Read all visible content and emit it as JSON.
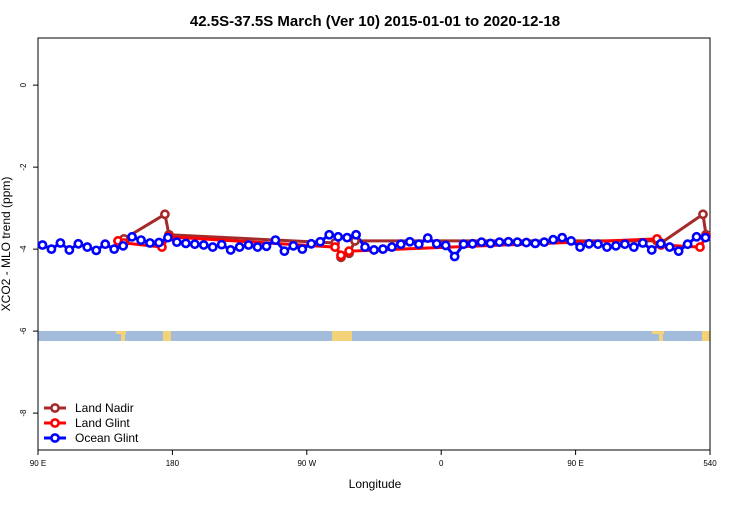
{
  "chart_data": {
    "type": "line",
    "title": "42.5S-37.5S March (Ver 10)   2015-01-01 to 2020-12-18",
    "xlabel": "Longitude",
    "ylabel": "XCO2 - MLO trend (ppm)",
    "xlim": [
      90,
      540
    ],
    "ylim": [
      -8.9,
      1.15
    ],
    "xticks": [
      {
        "value": 90,
        "label": "90 E"
      },
      180,
      {
        "value": 270,
        "label": "90 W"
      },
      {
        "value": 360,
        "label": "0"
      },
      {
        "value": 450,
        "label": "90 E"
      },
      540
    ],
    "yticks": [
      0,
      -2,
      -4,
      -6,
      -8
    ],
    "legend": "bottom-left",
    "series": [
      {
        "name": "Land Nadir",
        "color": "#a52a2a",
        "x": [
          143.6,
          147.6,
          175,
          177.7,
          288.9,
          292.9,
          298.3,
          302.3,
          504.5,
          507.2,
          535.3,
          537.3
        ],
        "values": [
          -3.8,
          -3.75,
          -3.15,
          -3.65,
          -3.85,
          -4.2,
          -4.1,
          -3.8,
          -3.8,
          -3.85,
          -3.15,
          -3.65
        ]
      },
      {
        "name": "Land Glint",
        "color": "#ff0000",
        "x": [
          143.6,
          147.6,
          173,
          177.7,
          288.9,
          292.9,
          298.3,
          504.5,
          507.2,
          533.3,
          537.3
        ],
        "values": [
          -3.8,
          -3.85,
          -3.95,
          -3.7,
          -3.95,
          -4.15,
          -4.05,
          -3.75,
          -3.9,
          -3.95,
          -3.7
        ]
      },
      {
        "name": "Ocean Glint",
        "color": "#0000ff",
        "x": [
          93,
          99,
          105,
          111,
          117,
          123,
          129,
          135,
          141,
          147,
          153,
          159,
          165,
          171,
          177,
          183,
          189,
          195,
          201,
          207,
          213,
          219,
          225,
          231,
          237,
          243,
          249,
          255,
          261,
          267,
          273,
          279,
          285,
          291,
          297,
          303,
          309,
          315,
          321,
          327,
          333,
          339,
          345,
          351,
          357,
          363,
          369,
          375,
          381,
          387,
          393,
          399,
          405,
          411,
          417,
          423,
          429,
          435,
          441,
          447,
          453,
          459,
          465,
          471,
          477,
          483,
          489,
          495,
          501,
          507,
          513,
          519,
          525,
          531,
          537
        ],
        "values": [
          -3.9,
          -4.0,
          -3.85,
          -4.02,
          -3.87,
          -3.95,
          -4.03,
          -3.88,
          -4.0,
          -3.92,
          -3.7,
          -3.78,
          -3.85,
          -3.84,
          -3.72,
          -3.83,
          -3.86,
          -3.88,
          -3.9,
          -3.95,
          -3.89,
          -4.02,
          -3.95,
          -3.9,
          -3.95,
          -3.93,
          -3.78,
          -4.05,
          -3.92,
          -4.0,
          -3.87,
          -3.82,
          -3.65,
          -3.7,
          -3.72,
          -3.65,
          -3.95,
          -4.02,
          -4.0,
          -3.95,
          -3.88,
          -3.82,
          -3.88,
          -3.73,
          -3.87,
          -3.91,
          -4.18,
          -3.88,
          -3.87,
          -3.83,
          -3.86,
          -3.83,
          -3.82,
          -3.83,
          -3.84,
          -3.86,
          -3.83,
          -3.77,
          -3.72,
          -3.8,
          -3.95,
          -3.87,
          -3.88,
          -3.95,
          -3.92,
          -3.88,
          -3.95,
          -3.85,
          -4.02,
          -3.87,
          -3.95,
          -4.05,
          -3.88,
          -3.7,
          -3.72
        ]
      }
    ]
  }
}
